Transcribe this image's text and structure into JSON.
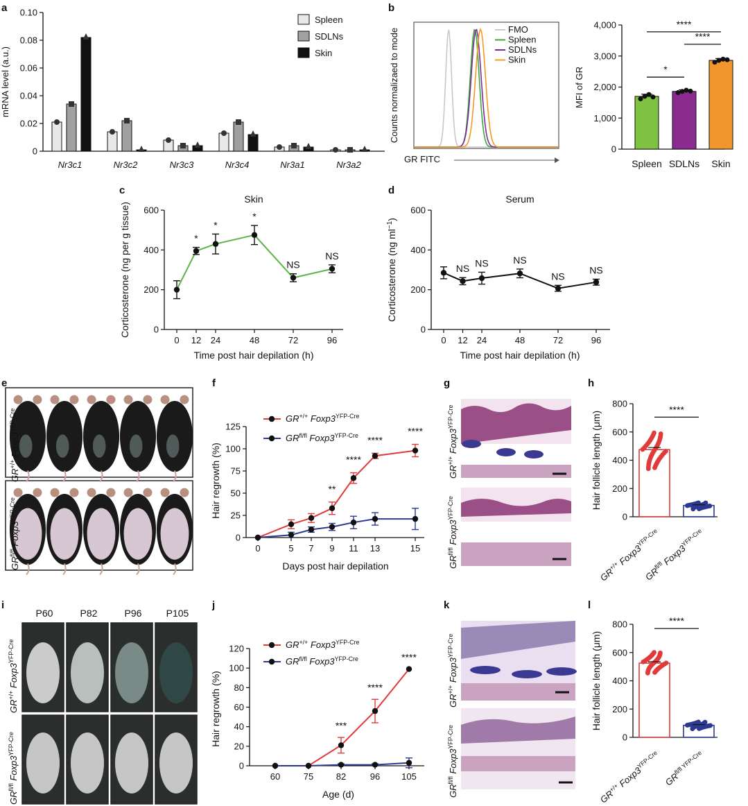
{
  "panels": [
    {
      "id": "a",
      "label": "a",
      "chart_index": 0
    },
    {
      "id": "b",
      "label": "b",
      "chart_index": 2
    },
    {
      "id": "c",
      "label": "c",
      "chart_index": 3
    },
    {
      "id": "d",
      "label": "d",
      "chart_index": 4
    },
    {
      "id": "e",
      "label": "e"
    },
    {
      "id": "f",
      "label": "f",
      "chart_index": 5
    },
    {
      "id": "g",
      "label": "g"
    },
    {
      "id": "h",
      "label": "h",
      "chart_index": 6
    },
    {
      "id": "i",
      "label": "i"
    },
    {
      "id": "j",
      "label": "j",
      "chart_index": 7
    },
    {
      "id": "k",
      "label": "k"
    },
    {
      "id": "l",
      "label": "l",
      "chart_index": 8
    }
  ],
  "genotypes": {
    "wt": {
      "base": "GR",
      "sup": "+/+",
      "gene": " Foxp3",
      "gsup": "YFP-Cre"
    },
    "ko": {
      "base": "GR",
      "sup": "fl/fl",
      "gene": " Foxp3",
      "gsup": "YFP-Cre"
    },
    "ko_short": {
      "base": "GR",
      "sup": "fl/fl YFP-Cre"
    }
  },
  "photo_panels": {
    "e": {
      "rows": [
        "wt",
        "ko"
      ],
      "mice_per_row": 5
    },
    "g": {
      "rows": [
        "wt",
        "ko"
      ]
    },
    "i": {
      "columns": [
        "P60",
        "P82",
        "P96",
        "P105"
      ],
      "rows": [
        "wt",
        "ko"
      ]
    },
    "k": {
      "rows": [
        "wt",
        "ko"
      ]
    }
  },
  "colors": {
    "spleen_bar": "#e8e8e8",
    "sdln_bar": "#a0a0a0",
    "skin_bar": "#111111",
    "fmo": "#c8c8c8",
    "spleen": "#3aaa35",
    "sdln": "#7b2c9a",
    "skin": "#f39a20",
    "mfi_spleen": "#7fc241",
    "mfi_sdln": "#8b2a8f",
    "mfi_skin": "#f0962c",
    "green_line": "#5cb345",
    "red": "#e03a3a",
    "blue": "#2b3990",
    "black": "#111111"
  },
  "chart_data": [
    {
      "panel": "a",
      "type": "bar",
      "ylabel": "mRNA level (a.u.)",
      "ylim": [
        0,
        0.1
      ],
      "yticks": [
        "0",
        "0.02",
        "0.04",
        "0.06",
        "0.08",
        "0.10"
      ],
      "categories": [
        "Nr3c1",
        "Nr3c2",
        "Nr3c3",
        "Nr3c4",
        "Nr3a1",
        "Nr3a2"
      ],
      "series": [
        {
          "name": "Spleen",
          "values": [
            0.021,
            0.014,
            0.008,
            0.013,
            0.003,
            0.001
          ]
        },
        {
          "name": "SDLNs",
          "values": [
            0.034,
            0.022,
            0.004,
            0.021,
            0.004,
            0.001
          ]
        },
        {
          "name": "Skin",
          "values": [
            0.082,
            0.001,
            0.004,
            0.012,
            0.003,
            0.001
          ]
        }
      ],
      "legend": "top-right"
    },
    {
      "panel": "b-left",
      "type": "line",
      "ylabel": "Counts normalizaed to mode",
      "xlabel": "GR FITC",
      "series": [
        {
          "name": "FMO",
          "peak": 0.18
        },
        {
          "name": "Spleen",
          "peak": 0.38
        },
        {
          "name": "SDLNs",
          "peak": 0.4
        },
        {
          "name": "Skin",
          "peak": 0.44
        }
      ],
      "legend": "top-right"
    },
    {
      "panel": "b-right",
      "type": "bar",
      "ylabel": "MFI of GR",
      "ylim": [
        0,
        4000
      ],
      "yticks": [
        "0",
        "1,000",
        "2,000",
        "3,000",
        "4,000"
      ],
      "categories": [
        "Spleen",
        "SDLNs",
        "Skin"
      ],
      "values": [
        1700,
        1860,
        2860
      ],
      "errors": [
        70,
        50,
        60
      ],
      "points": [
        [
          1620,
          1700,
          1760,
          1680
        ],
        [
          1820,
          1860,
          1900,
          1870
        ],
        [
          2800,
          2860,
          2900,
          2880
        ]
      ],
      "significance": [
        {
          "from": 0,
          "to": 1,
          "label": "*",
          "y": 2320
        },
        {
          "from": 1,
          "to": 2,
          "label": "****",
          "y": 3380
        },
        {
          "from": 0,
          "to": 2,
          "label": "****",
          "y": 3780
        }
      ]
    },
    {
      "panel": "c",
      "type": "line",
      "title": "Skin",
      "xlabel": "Time post hair depilation (h)",
      "ylabel": "Corticosterone (ng per g tissue)",
      "ylim": [
        0,
        600
      ],
      "yticks": [
        "0",
        "200",
        "400",
        "600"
      ],
      "x": [
        0,
        12,
        24,
        48,
        72,
        96
      ],
      "xticks": [
        "0",
        "12",
        "24",
        "48",
        "72",
        "96"
      ],
      "y": [
        200,
        395,
        430,
        475,
        260,
        305
      ],
      "err": [
        45,
        18,
        50,
        48,
        20,
        20
      ],
      "annotations": [
        "",
        "*",
        "*",
        "*",
        "NS",
        "NS"
      ]
    },
    {
      "panel": "d",
      "type": "line",
      "title": "Serum",
      "xlabel": "Time post hair depilation (h)",
      "ylabel_base": "Corticosterone (ng ml",
      "ylabel_sup": "−1",
      "ylabel_end": ")",
      "ylim": [
        0,
        600
      ],
      "yticks": [
        "0",
        "200",
        "400",
        "600"
      ],
      "x": [
        0,
        12,
        24,
        48,
        72,
        96
      ],
      "xticks": [
        "0",
        "12",
        "24",
        "48",
        "72",
        "96"
      ],
      "y": [
        285,
        243,
        258,
        282,
        207,
        238
      ],
      "err": [
        30,
        18,
        30,
        22,
        15,
        15
      ],
      "annotations": [
        "",
        "NS",
        "NS",
        "NS",
        "NS",
        "NS"
      ]
    },
    {
      "panel": "f",
      "type": "line",
      "xlabel": "Days post hair depilation",
      "ylabel": "Hair regrowth (%)",
      "ylim": [
        0,
        125
      ],
      "yticks": [
        "0",
        "25",
        "50",
        "75",
        "100",
        "125"
      ],
      "x": [
        0,
        5,
        7,
        9,
        11,
        13,
        15
      ],
      "xticks": [
        "0",
        "5",
        "7",
        "9",
        "11",
        "13",
        "15"
      ],
      "series": [
        {
          "key": "wt",
          "y": [
            0,
            15,
            22,
            33,
            67,
            92,
            98
          ],
          "err": [
            0,
            5,
            5,
            7,
            6,
            3,
            7
          ]
        },
        {
          "key": "ko",
          "y": [
            0,
            3,
            9,
            12,
            17,
            21,
            21
          ],
          "err": [
            0,
            3,
            3,
            4,
            7,
            7,
            12
          ]
        }
      ],
      "annotations": [
        "",
        "",
        "",
        "**",
        "****",
        "****",
        "****"
      ]
    },
    {
      "panel": "h",
      "type": "bar",
      "ylabel": "Hair follicle length (μm)",
      "ylim": [
        0,
        800
      ],
      "yticks": [
        "0",
        "200",
        "400",
        "600",
        "800"
      ],
      "categories": [
        "wt",
        "ko"
      ],
      "values": [
        475,
        80
      ],
      "errors": [
        15,
        5
      ],
      "spread": [
        [
          340,
          600
        ],
        [
          55,
          100
        ]
      ],
      "significance": [
        {
          "from": 0,
          "to": 1,
          "label": "****",
          "y": 705
        }
      ]
    },
    {
      "panel": "j",
      "type": "line",
      "xlabel": "Age (d)",
      "ylabel": "Hair regrowth (%)",
      "ylim": [
        0,
        120
      ],
      "yticks": [
        "0",
        "20",
        "40",
        "60",
        "80",
        "100",
        "120"
      ],
      "x": [
        60,
        75,
        82,
        96,
        105
      ],
      "xticks": [
        "60",
        "75",
        "82",
        "96",
        "105"
      ],
      "series": [
        {
          "key": "wt",
          "y": [
            0,
            0,
            21,
            56,
            99
          ],
          "err": [
            0,
            0,
            8,
            12,
            0
          ]
        },
        {
          "key": "ko",
          "y": [
            0,
            0,
            1,
            1,
            3
          ],
          "err": [
            0,
            0,
            1,
            1,
            5
          ]
        }
      ],
      "annotations": [
        "",
        "",
        "***",
        "****",
        "****"
      ]
    },
    {
      "panel": "l",
      "type": "bar",
      "ylabel": "Hair follicle length (μm)",
      "ylim": [
        0,
        800
      ],
      "yticks": [
        "0",
        "200",
        "400",
        "600",
        "800"
      ],
      "categories": [
        "wt",
        "ko_short"
      ],
      "values": [
        525,
        85
      ],
      "errors": [
        10,
        5
      ],
      "spread": [
        [
          455,
          605
        ],
        [
          60,
          110
        ]
      ],
      "significance": [
        {
          "from": 0,
          "to": 1,
          "label": "****",
          "y": 770
        }
      ]
    }
  ]
}
